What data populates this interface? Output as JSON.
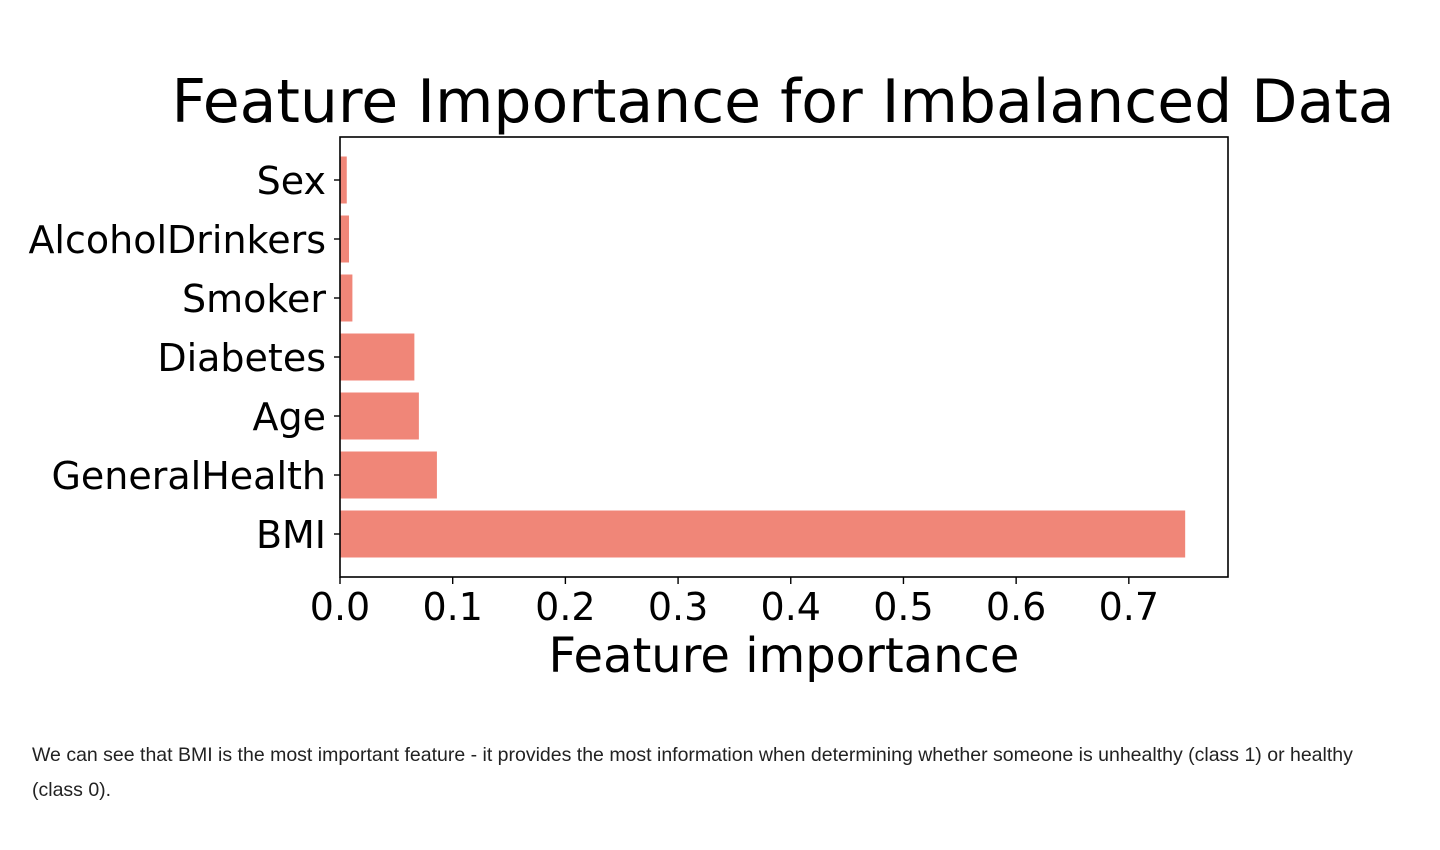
{
  "chart_data": {
    "type": "bar",
    "orientation": "horizontal",
    "title": "Feature Importance for Imbalanced Data",
    "xlabel": "Feature importance",
    "ylabel": "",
    "categories": [
      "BMI",
      "GeneralHealth",
      "Age",
      "Diabetes",
      "Smoker",
      "AlcoholDrinkers",
      "Sex"
    ],
    "values": [
      0.75,
      0.086,
      0.07,
      0.066,
      0.011,
      0.008,
      0.006
    ],
    "xlim": [
      0.0,
      0.788
    ],
    "xticks": [
      0.0,
      0.1,
      0.2,
      0.3,
      0.4,
      0.5,
      0.6,
      0.7
    ],
    "xtick_labels": [
      "0.0",
      "0.1",
      "0.2",
      "0.3",
      "0.4",
      "0.5",
      "0.6",
      "0.7"
    ],
    "grid": false,
    "bar_color": "#f08678"
  },
  "caption": {
    "text": "We can see that BMI is the most important feature - it provides the most information when determining whether someone is unhealthy (class 1) or healthy (class 0)."
  }
}
